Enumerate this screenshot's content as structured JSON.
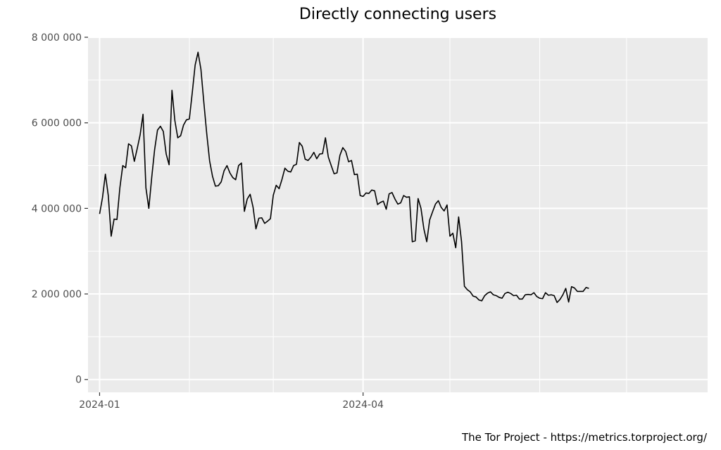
{
  "chart_data": {
    "type": "line",
    "title": "Directly connecting users",
    "xlabel": "",
    "ylabel": "",
    "caption": "The Tor Project - https://metrics.torproject.org/",
    "x_start": "2024-01-01",
    "x_step_days": 1,
    "xlim": [
      "2023-12-28",
      "2024-07-29"
    ],
    "ylim": [
      -300000,
      8000000
    ],
    "x_ticks": [
      {
        "date": "2024-01-01",
        "label": "2024-01"
      },
      {
        "date": "2024-04-01",
        "label": "2024-04"
      }
    ],
    "y_ticks": [
      {
        "value": 0,
        "label": "0"
      },
      {
        "value": 2000000,
        "label": "2 000 000"
      },
      {
        "value": 4000000,
        "label": "4 000 000"
      },
      {
        "value": 6000000,
        "label": "6 000 000"
      },
      {
        "value": 8000000,
        "label": "8 000 000"
      }
    ],
    "grid": true,
    "colors": {
      "panel": "#ebebeb",
      "grid": "#ffffff",
      "line": "#000000"
    },
    "series": [
      {
        "values": [
          3870000,
          4250000,
          4800000,
          4300000,
          3350000,
          3750000,
          3740000,
          4480000,
          5000000,
          4950000,
          5510000,
          5460000,
          5100000,
          5400000,
          5720000,
          6200000,
          4480000,
          4000000,
          4720000,
          5370000,
          5830000,
          5920000,
          5800000,
          5270000,
          5020000,
          6760000,
          6050000,
          5650000,
          5700000,
          5950000,
          6070000,
          6090000,
          6700000,
          7350000,
          7650000,
          7250000,
          6480000,
          5750000,
          5110000,
          4750000,
          4520000,
          4530000,
          4620000,
          4880000,
          5000000,
          4830000,
          4720000,
          4670000,
          5000000,
          5060000,
          3930000,
          4220000,
          4330000,
          4030000,
          3520000,
          3770000,
          3780000,
          3650000,
          3700000,
          3760000,
          4310000,
          4540000,
          4460000,
          4680000,
          4940000,
          4870000,
          4850000,
          5000000,
          5030000,
          5540000,
          5450000,
          5150000,
          5120000,
          5200000,
          5310000,
          5160000,
          5270000,
          5280000,
          5650000,
          5200000,
          5000000,
          4810000,
          4830000,
          5240000,
          5420000,
          5330000,
          5090000,
          5120000,
          4790000,
          4800000,
          4300000,
          4280000,
          4360000,
          4350000,
          4430000,
          4410000,
          4090000,
          4140000,
          4170000,
          3980000,
          4340000,
          4370000,
          4220000,
          4100000,
          4130000,
          4300000,
          4260000,
          4270000,
          3220000,
          3240000,
          4230000,
          4000000,
          3520000,
          3220000,
          3730000,
          3920000,
          4100000,
          4180000,
          4020000,
          3940000,
          4080000,
          3350000,
          3420000,
          3080000,
          3800000,
          3230000,
          2180000,
          2100000,
          2050000,
          1950000,
          1930000,
          1860000,
          1840000,
          1960000,
          2020000,
          2050000,
          1980000,
          1960000,
          1920000,
          1900000,
          2010000,
          2040000,
          2010000,
          1960000,
          1970000,
          1880000,
          1880000,
          1980000,
          1990000,
          1980000,
          2030000,
          1940000,
          1900000,
          1890000,
          2030000,
          1970000,
          1980000,
          1960000,
          1800000,
          1870000,
          1980000,
          2130000,
          1810000,
          2170000,
          2140000,
          2060000,
          2060000,
          2060000,
          2150000,
          2130000
        ]
      }
    ]
  }
}
